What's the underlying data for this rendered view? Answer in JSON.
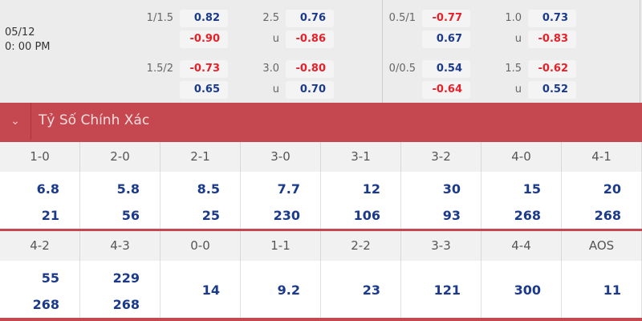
{
  "match": {
    "date": "05/12",
    "time": "0: 00 PM"
  },
  "odds_blocks": [
    {
      "hdp": "1/1.5",
      "hdp_home": "0.82",
      "hdp_away": "-0.90",
      "ou": "2.5",
      "ou_over": "0.76",
      "ou_under_label": "u",
      "ou_under": "-0.86"
    },
    {
      "hdp": "1.5/2",
      "hdp_home": "-0.73",
      "hdp_away": "0.65",
      "ou": "3.0",
      "ou_over": "-0.80",
      "ou_under_label": "u",
      "ou_under": "0.70"
    },
    {
      "hdp": "0.5/1",
      "hdp_home": "-0.77",
      "hdp_away": "0.67",
      "ou": "1.0",
      "ou_over": "0.73",
      "ou_under_label": "u",
      "ou_under": "-0.83"
    },
    {
      "hdp": "0/0.5",
      "hdp_home": "0.54",
      "hdp_away": "-0.64",
      "ou": "1.5",
      "ou_over": "-0.62",
      "ou_under_label": "u",
      "ou_under": "0.52"
    }
  ],
  "section": {
    "title": "Tỷ Số Chính Xác",
    "toggle_icon": "chevron-down-icon"
  },
  "correct_score": {
    "row1": [
      {
        "score": "1-0",
        "a": "6.8",
        "b": "21"
      },
      {
        "score": "2-0",
        "a": "5.8",
        "b": "56"
      },
      {
        "score": "2-1",
        "a": "8.5",
        "b": "25"
      },
      {
        "score": "3-0",
        "a": "7.7",
        "b": "230"
      },
      {
        "score": "3-1",
        "a": "12",
        "b": "106"
      },
      {
        "score": "3-2",
        "a": "30",
        "b": "93"
      },
      {
        "score": "4-0",
        "a": "15",
        "b": "268"
      },
      {
        "score": "4-1",
        "a": "20",
        "b": "268"
      }
    ],
    "row2": [
      {
        "score": "4-2",
        "a": "55",
        "b": "268"
      },
      {
        "score": "4-3",
        "a": "229",
        "b": "268"
      },
      {
        "score": "0-0",
        "a": "14"
      },
      {
        "score": "1-1",
        "a": "9.2"
      },
      {
        "score": "2-2",
        "a": "23"
      },
      {
        "score": "3-3",
        "a": "121"
      },
      {
        "score": "4-4",
        "a": "300"
      },
      {
        "score": "AOS",
        "a": "11"
      }
    ]
  },
  "colors": {
    "accent": "#c5474f",
    "positive": "#1b3a8c",
    "negative": "#e8202a"
  }
}
